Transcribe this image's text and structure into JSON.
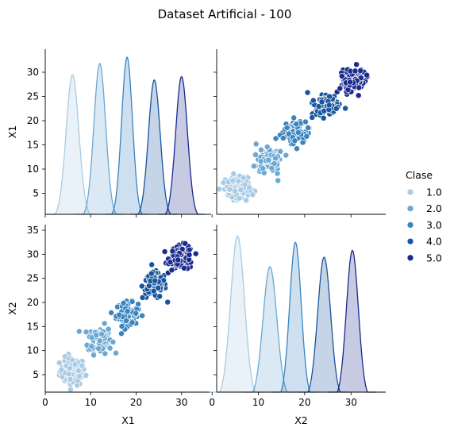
{
  "chart_data": {
    "type": "scatter",
    "title": "Dataset Artificial - 100",
    "variables": [
      "X1",
      "X2"
    ],
    "axes": {
      "X1": {
        "range": [
          0,
          36.5
        ],
        "ticks": [
          0,
          10,
          20,
          30
        ]
      },
      "X2": {
        "range": [
          1,
          37.5
        ],
        "ticks": [
          0,
          10,
          20,
          30
        ]
      }
    },
    "diag_y_ticks": {
      "row0": [
        5,
        10,
        15,
        20,
        25,
        30
      ],
      "row1": [
        5,
        10,
        15,
        20,
        25,
        30,
        35
      ]
    },
    "legend": {
      "title": "Clase",
      "placement": "right",
      "entries": [
        "1.0",
        "2.0",
        "3.0",
        "4.0",
        "5.0"
      ]
    },
    "series": [
      {
        "name": "1.0",
        "color": "#a9cbe3",
        "n": 100,
        "center": {
          "X1": 6,
          "X2": 5.5
        },
        "spread": {
          "X1": 1.4,
          "X2": 1.5
        },
        "kde_peak": {
          "X1": 29.5,
          "X2": 33.8
        }
      },
      {
        "name": "2.0",
        "color": "#6aa8d3",
        "n": 100,
        "center": {
          "X1": 12,
          "X2": 12.5
        },
        "spread": {
          "X1": 1.3,
          "X2": 1.5
        },
        "kde_peak": {
          "X1": 31.8,
          "X2": 27.4
        }
      },
      {
        "name": "3.0",
        "color": "#3a84bf",
        "n": 100,
        "center": {
          "X1": 18,
          "X2": 18
        },
        "spread": {
          "X1": 1.2,
          "X2": 1.25
        },
        "kde_peak": {
          "X1": 33.1,
          "X2": 32.5
        }
      },
      {
        "name": "4.0",
        "color": "#17559e",
        "n": 100,
        "center": {
          "X1": 24,
          "X2": 24.2
        },
        "spread": {
          "X1": 1.3,
          "X2": 1.4
        },
        "kde_peak": {
          "X1": 28.4,
          "X2": 29.4
        }
      },
      {
        "name": "5.0",
        "color": "#1a2a8e",
        "n": 100,
        "center": {
          "X1": 30,
          "X2": 30.3
        },
        "spread": {
          "X1": 1.3,
          "X2": 1.3
        },
        "kde_peak": {
          "X1": 29.1,
          "X2": 30.8
        }
      }
    ]
  }
}
